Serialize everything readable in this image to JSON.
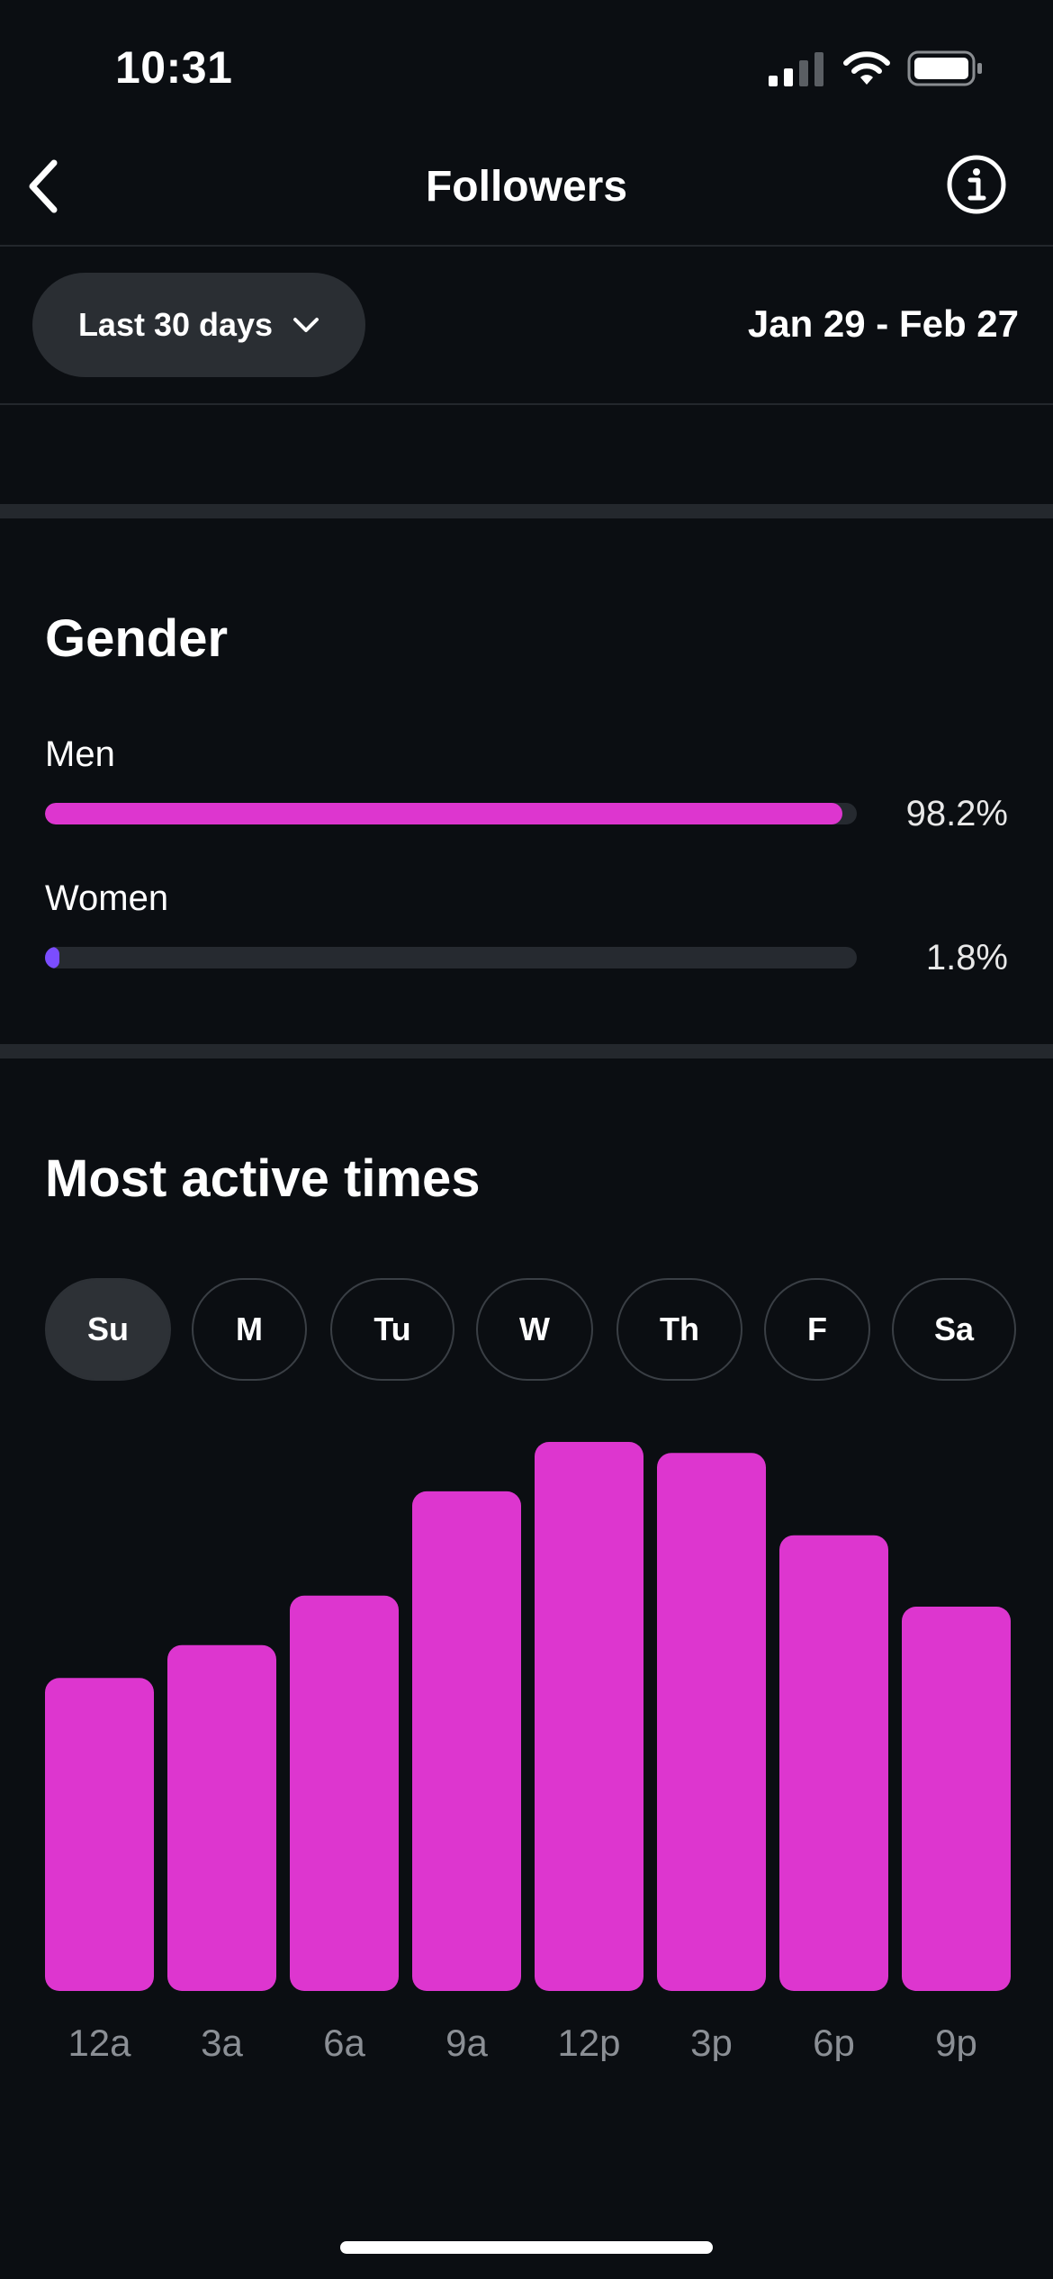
{
  "status_bar": {
    "time": "10:31"
  },
  "nav": {
    "title": "Followers"
  },
  "filter": {
    "range_label": "Last 30 days",
    "date_range": "Jan 29 - Feb 27"
  },
  "gender": {
    "title": "Gender",
    "items": [
      {
        "label": "Men",
        "value": "98.2%",
        "fraction": 0.982,
        "color": "#dd36cf"
      },
      {
        "label": "Women",
        "value": "1.8%",
        "fraction": 0.018,
        "color": "#7b4dff"
      }
    ]
  },
  "active_times": {
    "title": "Most active times",
    "days": [
      "Su",
      "M",
      "Tu",
      "W",
      "Th",
      "F",
      "Sa"
    ],
    "selected_day": "Su"
  },
  "chart_data": {
    "type": "bar",
    "categories": [
      "12a",
      "3a",
      "6a",
      "9a",
      "12p",
      "3p",
      "6p",
      "9p"
    ],
    "values": [
      57,
      63,
      72,
      91,
      100,
      98,
      83,
      70
    ],
    "color": "#dd36cf"
  },
  "colors": {
    "background": "#0b0e12",
    "accent": "#dd36cf",
    "chip_selected": "#2d3136"
  }
}
